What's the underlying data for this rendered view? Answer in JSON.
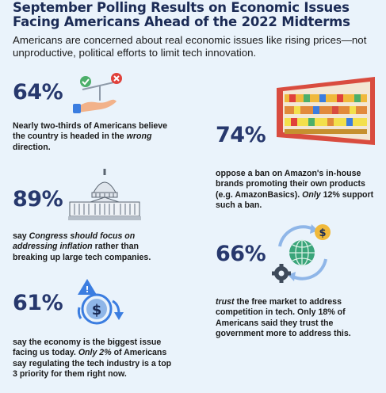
{
  "header": {
    "title": "September Polling Results on Economic Issues Facing Americans Ahead of the 2022 Midterms",
    "subtitle": "Americans are concerned about real economic issues like rising prices—not unproductive, political efforts to limit tech innovation."
  },
  "stats": [
    {
      "value": "64%",
      "icon": "scale-hand-icon",
      "text_1": "Nearly two-thirds of Americans believe the country is headed in the ",
      "text_2": "wrong",
      "text_3": " direction."
    },
    {
      "value": "74%",
      "icon": "store-shelf-icon",
      "text_1": "oppose a ban on Amazon's in-house brands promoting their own products (e.g. AmazonBasics). ",
      "text_2": "Only",
      "text_3": " 12% support such a ban."
    },
    {
      "value": "89%",
      "icon": "capitol-building-icon",
      "text_1": "say ",
      "text_2": "Congress should focus on addressing inflation",
      "text_3": " rather than breaking up large tech companies."
    },
    {
      "value": "66%",
      "icon": "globe-gear-dollar-icon",
      "text_1": "trust",
      "text_2": " the free market to address competition in tech. Only 18% of Americans said they trust the government more to address this.",
      "text_3": ""
    },
    {
      "value": "61%",
      "icon": "dollar-decline-icon",
      "text_1": "say the economy is the biggest issue facing us today. ",
      "text_2": "Only 2%",
      "text_3": " of Americans say regulating the tech industry is a top 3 priority for them right now."
    }
  ]
}
